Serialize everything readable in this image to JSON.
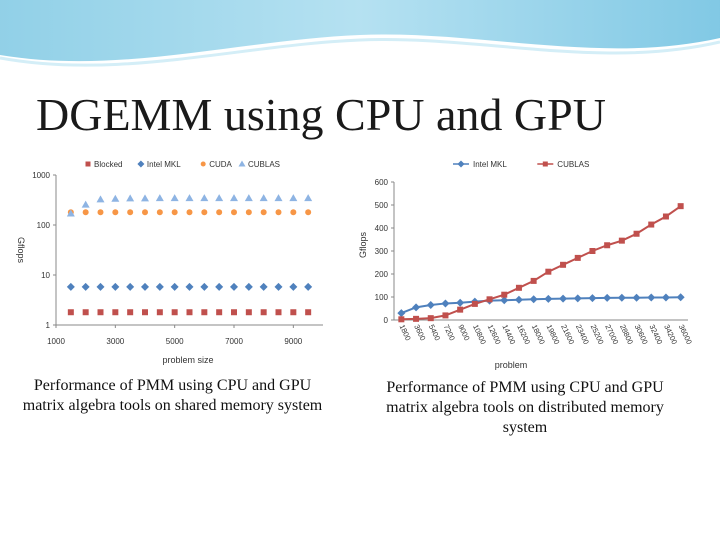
{
  "slide": {
    "title": "DGEMM using CPU and GPU",
    "left_caption": "Performance of PMM using CPU and GPU matrix algebra tools on shared memory system",
    "right_caption": "Performance of PMM using CPU and GPU matrix algebra tools on distributed memory system"
  },
  "chart_data": [
    {
      "type": "scatter",
      "title": "",
      "xlabel": "problem size",
      "ylabel": "Gflops",
      "yscale": "log",
      "xlim": [
        1000,
        10000
      ],
      "ylim": [
        1,
        1000
      ],
      "x_ticks": [
        "1000",
        "3000",
        "5000",
        "7000",
        "9000"
      ],
      "y_ticks": [
        "1",
        "10",
        "100",
        "1000"
      ],
      "legend": "top",
      "grid": false,
      "x": [
        1500,
        2000,
        2500,
        3000,
        3500,
        4000,
        4500,
        5000,
        5500,
        6000,
        6500,
        7000,
        7500,
        8000,
        8500,
        9000,
        9500
      ],
      "series": [
        {
          "name": "Blocked",
          "marker": "square",
          "color": "#c0504d",
          "values": [
            1.8,
            1.8,
            1.8,
            1.8,
            1.8,
            1.8,
            1.8,
            1.8,
            1.8,
            1.8,
            1.8,
            1.8,
            1.8,
            1.8,
            1.8,
            1.8,
            1.8
          ]
        },
        {
          "name": "Intel MKL",
          "marker": "diamond",
          "color": "#4f81bd",
          "values": [
            5.8,
            5.8,
            5.8,
            5.8,
            5.8,
            5.8,
            5.8,
            5.8,
            5.8,
            5.8,
            5.8,
            5.8,
            5.8,
            5.8,
            5.8,
            5.8,
            5.8
          ]
        },
        {
          "name": "CUDA",
          "marker": "circle",
          "color": "#f79646",
          "values": [
            180,
            180,
            180,
            180,
            180,
            180,
            180,
            180,
            180,
            180,
            180,
            180,
            180,
            180,
            180,
            180,
            180
          ]
        },
        {
          "name": "CUBLAS",
          "marker": "triangle",
          "color": "#8eb4e3",
          "values": [
            170,
            255,
            325,
            335,
            340,
            340,
            345,
            345,
            345,
            345,
            345,
            345,
            345,
            345,
            345,
            345,
            345
          ]
        }
      ]
    },
    {
      "type": "line",
      "title": "",
      "xlabel": "problem",
      "ylabel": "Gflops",
      "ylim": [
        0,
        600
      ],
      "y_ticks": [
        "0",
        "100",
        "200",
        "300",
        "400",
        "500",
        "600"
      ],
      "legend": "top",
      "grid": false,
      "categories": [
        "1800",
        "3600",
        "5400",
        "7200",
        "9000",
        "10800",
        "12600",
        "14400",
        "16200",
        "18000",
        "19800",
        "21600",
        "23400",
        "25200",
        "27000",
        "28800",
        "30600",
        "32400",
        "34200",
        "36000"
      ],
      "series": [
        {
          "name": "Intel MKL",
          "marker": "diamond",
          "color": "#4f81bd",
          "values": [
            30,
            55,
            65,
            72,
            75,
            80,
            84,
            86,
            88,
            90,
            92,
            93,
            94,
            95,
            96,
            97,
            97,
            98,
            98,
            99
          ]
        },
        {
          "name": "CUBLAS",
          "marker": "square",
          "color": "#c0504d",
          "values": [
            3,
            5,
            8,
            20,
            45,
            70,
            90,
            110,
            140,
            170,
            210,
            240,
            270,
            300,
            325,
            345,
            375,
            415,
            450,
            495
          ]
        }
      ]
    }
  ]
}
